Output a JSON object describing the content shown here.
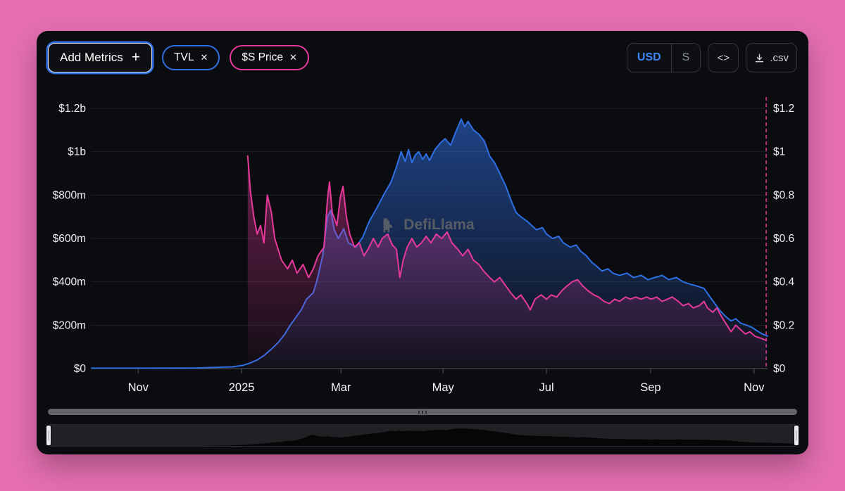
{
  "colors": {
    "background_pink": "#e56fb1",
    "panel": "#0b0c10",
    "accent_blue": "#2f6fe4",
    "accent_pink": "#e6399b",
    "usd_text": "#3d87f5"
  },
  "icons": {
    "close": "✕",
    "plus": "+",
    "embed": "<>"
  },
  "toolbar": {
    "add_metrics": {
      "label": "Add Metrics"
    },
    "pills": [
      {
        "label": "TVL",
        "color": "#2f6fe4"
      },
      {
        "label": "$S Price",
        "color": "#e6399b"
      }
    ],
    "currency": {
      "usd": "USD",
      "token": "S"
    },
    "csv_label": ".csv"
  },
  "watermark": {
    "text": "DefiLlama"
  },
  "chart_data": {
    "type": "area",
    "x_domain": [
      "2024-10-15",
      "2025-11-05"
    ],
    "x_ticks": [
      {
        "pos": 0.069,
        "label": "Nov"
      },
      {
        "pos": 0.222,
        "label": "2025"
      },
      {
        "pos": 0.369,
        "label": "Mar"
      },
      {
        "pos": 0.52,
        "label": "May"
      },
      {
        "pos": 0.673,
        "label": "Jul"
      },
      {
        "pos": 0.827,
        "label": "Sep"
      },
      {
        "pos": 0.98,
        "label": "Nov"
      }
    ],
    "y_left": {
      "name": "TVL",
      "unit": "USD millions",
      "max": 1200,
      "min": 0,
      "ticks": [
        "$1.2b",
        "$1b",
        "$800m",
        "$600m",
        "$400m",
        "$200m",
        "$0"
      ]
    },
    "y_right": {
      "name": "$S Price",
      "unit": "USD",
      "max": 1.2,
      "min": 0,
      "ticks": [
        "$1.2",
        "$1",
        "$0.8",
        "$0.6",
        "$0.4",
        "$0.2",
        "$0"
      ]
    },
    "grid": true,
    "legend_position": "none",
    "current_line_pos": 0.998,
    "series": [
      {
        "id": "tvl",
        "name": "TVL",
        "axis": "left",
        "color": "#2f6fe4",
        "points": [
          [
            0.0,
            2
          ],
          [
            0.073,
            2
          ],
          [
            0.156,
            3
          ],
          [
            0.208,
            8
          ],
          [
            0.224,
            15
          ],
          [
            0.234,
            25
          ],
          [
            0.245,
            40
          ],
          [
            0.255,
            60
          ],
          [
            0.266,
            90
          ],
          [
            0.276,
            120
          ],
          [
            0.286,
            160
          ],
          [
            0.294,
            200
          ],
          [
            0.302,
            235
          ],
          [
            0.31,
            270
          ],
          [
            0.318,
            320
          ],
          [
            0.328,
            350
          ],
          [
            0.333,
            400
          ],
          [
            0.342,
            520
          ],
          [
            0.349,
            700
          ],
          [
            0.354,
            730
          ],
          [
            0.359,
            640
          ],
          [
            0.365,
            600
          ],
          [
            0.373,
            645
          ],
          [
            0.38,
            580
          ],
          [
            0.391,
            560
          ],
          [
            0.401,
            605
          ],
          [
            0.411,
            680
          ],
          [
            0.422,
            740
          ],
          [
            0.432,
            800
          ],
          [
            0.443,
            860
          ],
          [
            0.45,
            920
          ],
          [
            0.458,
            1000
          ],
          [
            0.464,
            955
          ],
          [
            0.469,
            1010
          ],
          [
            0.474,
            950
          ],
          [
            0.479,
            985
          ],
          [
            0.484,
            1000
          ],
          [
            0.49,
            965
          ],
          [
            0.495,
            990
          ],
          [
            0.5,
            960
          ],
          [
            0.508,
            1010
          ],
          [
            0.516,
            1040
          ],
          [
            0.523,
            1060
          ],
          [
            0.531,
            1030
          ],
          [
            0.54,
            1100
          ],
          [
            0.547,
            1150
          ],
          [
            0.552,
            1115
          ],
          [
            0.557,
            1140
          ],
          [
            0.565,
            1100
          ],
          [
            0.573,
            1080
          ],
          [
            0.581,
            1050
          ],
          [
            0.589,
            980
          ],
          [
            0.596,
            950
          ],
          [
            0.604,
            900
          ],
          [
            0.613,
            840
          ],
          [
            0.62,
            780
          ],
          [
            0.628,
            720
          ],
          [
            0.635,
            700
          ],
          [
            0.644,
            680
          ],
          [
            0.651,
            660
          ],
          [
            0.658,
            640
          ],
          [
            0.667,
            650
          ],
          [
            0.673,
            620
          ],
          [
            0.682,
            600
          ],
          [
            0.691,
            610
          ],
          [
            0.698,
            580
          ],
          [
            0.708,
            560
          ],
          [
            0.717,
            570
          ],
          [
            0.724,
            540
          ],
          [
            0.732,
            520
          ],
          [
            0.74,
            490
          ],
          [
            0.748,
            470
          ],
          [
            0.755,
            450
          ],
          [
            0.764,
            460
          ],
          [
            0.771,
            440
          ],
          [
            0.781,
            430
          ],
          [
            0.792,
            440
          ],
          [
            0.802,
            420
          ],
          [
            0.813,
            430
          ],
          [
            0.823,
            410
          ],
          [
            0.833,
            420
          ],
          [
            0.844,
            430
          ],
          [
            0.854,
            410
          ],
          [
            0.865,
            420
          ],
          [
            0.875,
            400
          ],
          [
            0.885,
            390
          ],
          [
            0.896,
            380
          ],
          [
            0.906,
            370
          ],
          [
            0.915,
            330
          ],
          [
            0.922,
            300
          ],
          [
            0.929,
            270
          ],
          [
            0.938,
            240
          ],
          [
            0.946,
            220
          ],
          [
            0.953,
            230
          ],
          [
            0.96,
            210
          ],
          [
            0.969,
            200
          ],
          [
            0.977,
            190
          ],
          [
            0.984,
            175
          ],
          [
            0.992,
            160
          ],
          [
            1.0,
            150
          ]
        ]
      },
      {
        "id": "price",
        "name": "$S Price",
        "axis": "right",
        "color": "#e6399b",
        "points": [
          [
            0.231,
            0.98
          ],
          [
            0.235,
            0.82
          ],
          [
            0.24,
            0.7
          ],
          [
            0.245,
            0.62
          ],
          [
            0.25,
            0.66
          ],
          [
            0.255,
            0.58
          ],
          [
            0.26,
            0.8
          ],
          [
            0.266,
            0.72
          ],
          [
            0.271,
            0.6
          ],
          [
            0.276,
            0.55
          ],
          [
            0.281,
            0.5
          ],
          [
            0.29,
            0.46
          ],
          [
            0.297,
            0.5
          ],
          [
            0.304,
            0.44
          ],
          [
            0.313,
            0.48
          ],
          [
            0.321,
            0.42
          ],
          [
            0.328,
            0.46
          ],
          [
            0.335,
            0.52
          ],
          [
            0.344,
            0.56
          ],
          [
            0.349,
            0.78
          ],
          [
            0.352,
            0.86
          ],
          [
            0.356,
            0.72
          ],
          [
            0.363,
            0.66
          ],
          [
            0.368,
            0.79
          ],
          [
            0.372,
            0.84
          ],
          [
            0.377,
            0.7
          ],
          [
            0.382,
            0.62
          ],
          [
            0.389,
            0.56
          ],
          [
            0.396,
            0.58
          ],
          [
            0.403,
            0.52
          ],
          [
            0.409,
            0.55
          ],
          [
            0.417,
            0.6
          ],
          [
            0.424,
            0.56
          ],
          [
            0.43,
            0.6
          ],
          [
            0.438,
            0.62
          ],
          [
            0.445,
            0.57
          ],
          [
            0.451,
            0.55
          ],
          [
            0.456,
            0.42
          ],
          [
            0.461,
            0.5
          ],
          [
            0.467,
            0.56
          ],
          [
            0.474,
            0.6
          ],
          [
            0.481,
            0.56
          ],
          [
            0.488,
            0.58
          ],
          [
            0.495,
            0.61
          ],
          [
            0.502,
            0.58
          ],
          [
            0.51,
            0.62
          ],
          [
            0.518,
            0.6
          ],
          [
            0.526,
            0.63
          ],
          [
            0.533,
            0.58
          ],
          [
            0.542,
            0.55
          ],
          [
            0.549,
            0.52
          ],
          [
            0.557,
            0.55
          ],
          [
            0.565,
            0.5
          ],
          [
            0.573,
            0.48
          ],
          [
            0.58,
            0.45
          ],
          [
            0.589,
            0.42
          ],
          [
            0.596,
            0.4
          ],
          [
            0.604,
            0.42
          ],
          [
            0.613,
            0.38
          ],
          [
            0.62,
            0.35
          ],
          [
            0.628,
            0.32
          ],
          [
            0.635,
            0.34
          ],
          [
            0.644,
            0.3
          ],
          [
            0.649,
            0.27
          ],
          [
            0.656,
            0.32
          ],
          [
            0.665,
            0.34
          ],
          [
            0.673,
            0.32
          ],
          [
            0.68,
            0.34
          ],
          [
            0.688,
            0.33
          ],
          [
            0.696,
            0.36
          ],
          [
            0.703,
            0.38
          ],
          [
            0.711,
            0.4
          ],
          [
            0.719,
            0.41
          ],
          [
            0.727,
            0.38
          ],
          [
            0.734,
            0.36
          ],
          [
            0.743,
            0.34
          ],
          [
            0.75,
            0.33
          ],
          [
            0.758,
            0.31
          ],
          [
            0.766,
            0.3
          ],
          [
            0.774,
            0.32
          ],
          [
            0.781,
            0.31
          ],
          [
            0.79,
            0.33
          ],
          [
            0.797,
            0.32
          ],
          [
            0.805,
            0.33
          ],
          [
            0.813,
            0.32
          ],
          [
            0.821,
            0.33
          ],
          [
            0.828,
            0.32
          ],
          [
            0.836,
            0.33
          ],
          [
            0.844,
            0.31
          ],
          [
            0.852,
            0.32
          ],
          [
            0.859,
            0.33
          ],
          [
            0.868,
            0.31
          ],
          [
            0.875,
            0.29
          ],
          [
            0.883,
            0.3
          ],
          [
            0.89,
            0.28
          ],
          [
            0.899,
            0.29
          ],
          [
            0.906,
            0.31
          ],
          [
            0.911,
            0.28
          ],
          [
            0.919,
            0.26
          ],
          [
            0.925,
            0.28
          ],
          [
            0.932,
            0.24
          ],
          [
            0.94,
            0.2
          ],
          [
            0.946,
            0.17
          ],
          [
            0.953,
            0.2
          ],
          [
            0.96,
            0.18
          ],
          [
            0.967,
            0.16
          ],
          [
            0.974,
            0.17
          ],
          [
            0.981,
            0.15
          ],
          [
            0.99,
            0.14
          ],
          [
            0.998,
            0.13
          ]
        ]
      }
    ]
  }
}
